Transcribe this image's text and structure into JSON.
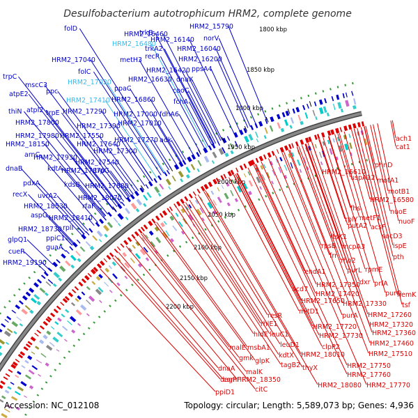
{
  "title": "Desulfobacterium autotrophicum HRM2, complete genome",
  "footer": {
    "accession": "Accession: NC_012108",
    "summary": "Topology: circular; Length: 5,589,073 bp; Genes: 4,936"
  },
  "colors": {
    "forward": "#0000cc",
    "forward_hypothetical": "#33bbee",
    "reverse": "#dd0000",
    "backbone": "#888888",
    "dots": "#339933"
  },
  "ticks": [
    "1800 kbp",
    "1850 kbp",
    "1900 kbp",
    "1950 kbp",
    "2000 kbp",
    "2050 kbp",
    "2100 kbp",
    "2150 kbp",
    "2200 kbp"
  ],
  "forward_labels": [
    {
      "text": "folD",
      "kind": "named"
    },
    {
      "text": "HRM2_16460",
      "kind": "named"
    },
    {
      "text": "trkB",
      "kind": "named"
    },
    {
      "text": "HRM2_16480",
      "kind": "hypothetical"
    },
    {
      "text": "HRM2_15790",
      "kind": "named"
    },
    {
      "text": "HRM2_16140",
      "kind": "named"
    },
    {
      "text": "norV",
      "kind": "named"
    },
    {
      "text": "trkA2",
      "kind": "named"
    },
    {
      "text": "HRM2_16040",
      "kind": "named"
    },
    {
      "text": "HRM2_17040",
      "kind": "named"
    },
    {
      "text": "metH3",
      "kind": "named"
    },
    {
      "text": "recR",
      "kind": "named"
    },
    {
      "text": "HRM2_16200",
      "kind": "named"
    },
    {
      "text": "folC",
      "kind": "named"
    },
    {
      "text": "HRM2_16420",
      "kind": "named"
    },
    {
      "text": "ppsA4",
      "kind": "named"
    },
    {
      "text": "trpC",
      "kind": "named"
    },
    {
      "text": "HRM2_17020",
      "kind": "hypothetical"
    },
    {
      "text": "HRM2_16630",
      "kind": "named"
    },
    {
      "text": "dnaX",
      "kind": "named"
    },
    {
      "text": "mscC3",
      "kind": "named"
    },
    {
      "text": "ppaC",
      "kind": "named"
    },
    {
      "text": "cooC",
      "kind": "named"
    },
    {
      "text": "atpE2",
      "kind": "named"
    },
    {
      "text": "ppc",
      "kind": "named"
    },
    {
      "text": "HRM2_17410",
      "kind": "hypothetical"
    },
    {
      "text": "HRM2_16860",
      "kind": "named"
    },
    {
      "text": "fchA",
      "kind": "named"
    },
    {
      "text": "thiN",
      "kind": "named"
    },
    {
      "text": "atpI2",
      "kind": "named"
    },
    {
      "text": "trpE",
      "kind": "named"
    },
    {
      "text": "HRM2_17290",
      "kind": "named"
    },
    {
      "text": "HRM2_17000",
      "kind": "named"
    },
    {
      "text": "fdhA6",
      "kind": "named"
    },
    {
      "text": "HRM2_17800",
      "kind": "named"
    },
    {
      "text": "HRM2_17390",
      "kind": "named"
    },
    {
      "text": "HRM2_17010",
      "kind": "named"
    },
    {
      "text": "HRM2_17980",
      "kind": "named"
    },
    {
      "text": "HRM2_17550",
      "kind": "named"
    },
    {
      "text": "HRM2_18150",
      "kind": "named"
    },
    {
      "text": "HRM2_17640",
      "kind": "named"
    },
    {
      "text": "HRM2_17270",
      "kind": "named"
    },
    {
      "text": "adk",
      "kind": "named"
    },
    {
      "text": "arnC",
      "kind": "named"
    },
    {
      "text": "HRM2_17930",
      "kind": "named"
    },
    {
      "text": "HRM2_17300",
      "kind": "named"
    },
    {
      "text": "kdtA",
      "kind": "named"
    },
    {
      "text": "HRM2_17540",
      "kind": "named"
    },
    {
      "text": "dnaB",
      "kind": "named"
    },
    {
      "text": "HRM2_17870",
      "kind": "named"
    },
    {
      "text": "trpG",
      "kind": "named"
    },
    {
      "text": "pdxA",
      "kind": "named"
    },
    {
      "text": "kdsB",
      "kind": "named"
    },
    {
      "text": "HRM2_17880",
      "kind": "named"
    },
    {
      "text": "recX",
      "kind": "named"
    },
    {
      "text": "uvrA2",
      "kind": "named"
    },
    {
      "text": "HRM2_18070",
      "kind": "named"
    },
    {
      "text": "HRM2_18530",
      "kind": "named"
    },
    {
      "text": "rfaF",
      "kind": "named"
    },
    {
      "text": "aspG",
      "kind": "named"
    },
    {
      "text": "HRM2_18410",
      "kind": "named"
    },
    {
      "text": "HRM2_18730",
      "kind": "named"
    },
    {
      "text": "rplI",
      "kind": "named"
    },
    {
      "text": "glpQ1",
      "kind": "named"
    },
    {
      "text": "ppiC1",
      "kind": "named"
    },
    {
      "text": "guaA",
      "kind": "named"
    },
    {
      "text": "cueR",
      "kind": "named"
    },
    {
      "text": "HRM2_19190",
      "kind": "named"
    }
  ],
  "reverse_labels": [
    "ach1",
    "cat1",
    "phnD",
    "uspA12",
    "HRM2_16610",
    "motA1",
    "motB1",
    "HRM2_16580",
    "fhs",
    "nuoE",
    "rplY",
    "metF1",
    "nuoF",
    "putA2",
    "acsF",
    "ftsK1",
    "sucD3",
    "rpsB",
    "mcpA3",
    "ispE",
    "frr",
    "pth",
    "rho2",
    "purL",
    "rpmE",
    "endA1",
    "dxr",
    "prfA",
    "acd7",
    "HRM2_17350",
    "HRM2_17420",
    "purQ",
    "hemK",
    "HRM2_17330",
    "tsf",
    "mltD1",
    "HRM2_17650",
    "purA",
    "HRM2_17260",
    "resR",
    "HRM2_17720",
    "HRM2_17320",
    "rhlE1",
    "HRM2_17730",
    "HRM2_17360",
    "hldE",
    "leuC1",
    "HRM2_17460",
    "leuD1",
    "clpP2",
    "HRM2_17510",
    "kdtX",
    "HRM2_18010",
    "malE",
    "msbA1",
    "tagB2",
    "thyX",
    "gmk",
    "glpK",
    "HRM2_17750",
    "malK",
    "HRM2_17760",
    "dnaA",
    "comF",
    "HRM2_18350",
    "HRM2_18080",
    "HRM2_17770",
    "degP",
    "citC",
    "ppiD1"
  ]
}
